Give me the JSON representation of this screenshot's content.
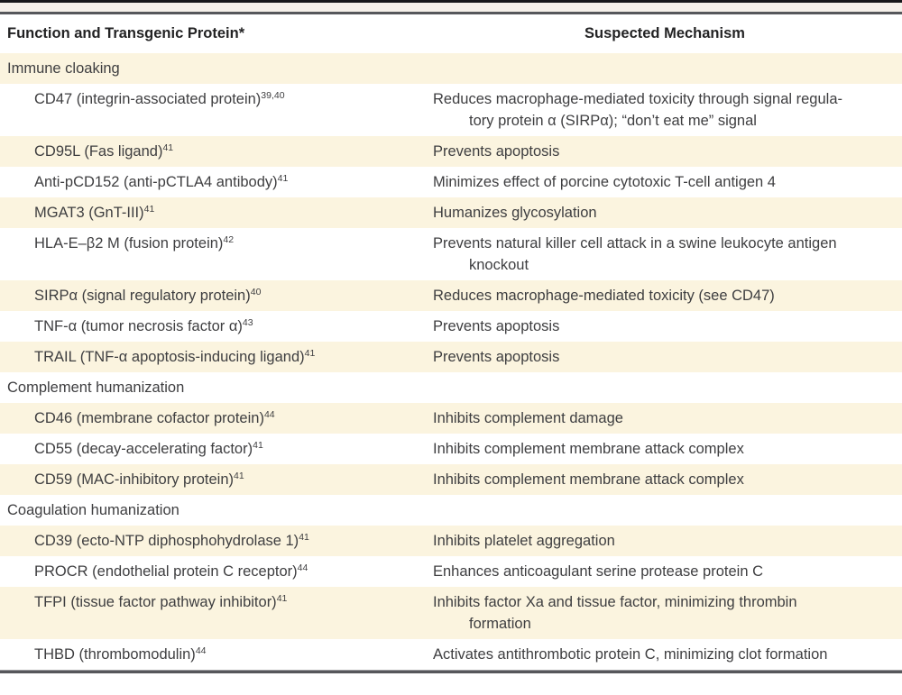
{
  "table": {
    "header": {
      "function": "Function and Transgenic Protein*",
      "mechanism": "Suspected Mechanism"
    },
    "colors": {
      "row_shade": "#fbf4df",
      "rule": "#56575b",
      "body_text": "#3e3e40",
      "header_text": "#232324"
    },
    "rows": [
      {
        "type": "section",
        "label": "Immune cloaking"
      },
      {
        "type": "item",
        "protein": "CD47 (integrin-associated protein)",
        "ref": "39,40",
        "mechanism_lines": [
          "Reduces macrophage-mediated toxicity through signal regula-",
          "tory protein α (SIRPα); “don’t eat me” signal"
        ]
      },
      {
        "type": "item",
        "protein": "CD95L (Fas ligand)",
        "ref": "41",
        "mechanism_lines": [
          "Prevents apoptosis"
        ]
      },
      {
        "type": "item",
        "protein": "Anti-pCD152 (anti-pCTLA4 antibody)",
        "ref": "41",
        "mechanism_lines": [
          "Minimizes effect of porcine cytotoxic T-cell antigen 4"
        ]
      },
      {
        "type": "item",
        "protein": "MGAT3 (GnT-III)",
        "ref": "41",
        "mechanism_lines": [
          "Humanizes glycosylation"
        ]
      },
      {
        "type": "item",
        "protein": "HLA-E–β2 M (fusion protein)",
        "ref": "42",
        "mechanism_lines": [
          "Prevents natural killer cell attack in a swine leukocyte antigen",
          "knockout"
        ]
      },
      {
        "type": "item",
        "protein": "SIRPα (signal regulatory protein)",
        "ref": "40",
        "mechanism_lines": [
          "Reduces macrophage-mediated toxicity (see CD47)"
        ]
      },
      {
        "type": "item",
        "protein": "TNF-α (tumor necrosis factor α)",
        "ref": "43",
        "mechanism_lines": [
          "Prevents apoptosis"
        ]
      },
      {
        "type": "item",
        "protein": "TRAIL (TNF-α apoptosis-inducing ligand)",
        "ref": "41",
        "mechanism_lines": [
          "Prevents apoptosis"
        ]
      },
      {
        "type": "section",
        "label": "Complement humanization"
      },
      {
        "type": "item",
        "protein": "CD46 (membrane cofactor protein)",
        "ref": "44",
        "mechanism_lines": [
          "Inhibits complement damage"
        ]
      },
      {
        "type": "item",
        "protein": "CD55 (decay-accelerating factor)",
        "ref": "41",
        "mechanism_lines": [
          "Inhibits complement membrane attack complex"
        ]
      },
      {
        "type": "item",
        "protein": "CD59 (MAC-inhibitory protein)",
        "ref": "41",
        "mechanism_lines": [
          "Inhibits complement membrane attack complex"
        ]
      },
      {
        "type": "section",
        "label": "Coagulation humanization"
      },
      {
        "type": "item",
        "protein": "CD39 (ecto-NTP diphosphohydrolase 1)",
        "ref": "41",
        "mechanism_lines": [
          "Inhibits platelet aggregation"
        ]
      },
      {
        "type": "item",
        "protein": "PROCR (endothelial protein C receptor)",
        "ref": "44",
        "mechanism_lines": [
          "Enhances anticoagulant serine protease protein C"
        ]
      },
      {
        "type": "item",
        "protein": "TFPI (tissue factor pathway inhibitor)",
        "ref": "41",
        "mechanism_lines": [
          "Inhibits factor Xa and tissue factor, minimizing thrombin",
          "formation"
        ]
      },
      {
        "type": "item",
        "protein": "THBD (thrombomodulin)",
        "ref": "44",
        "mechanism_lines": [
          "Activates antithrombotic protein C, minimizing clot formation"
        ]
      }
    ]
  }
}
